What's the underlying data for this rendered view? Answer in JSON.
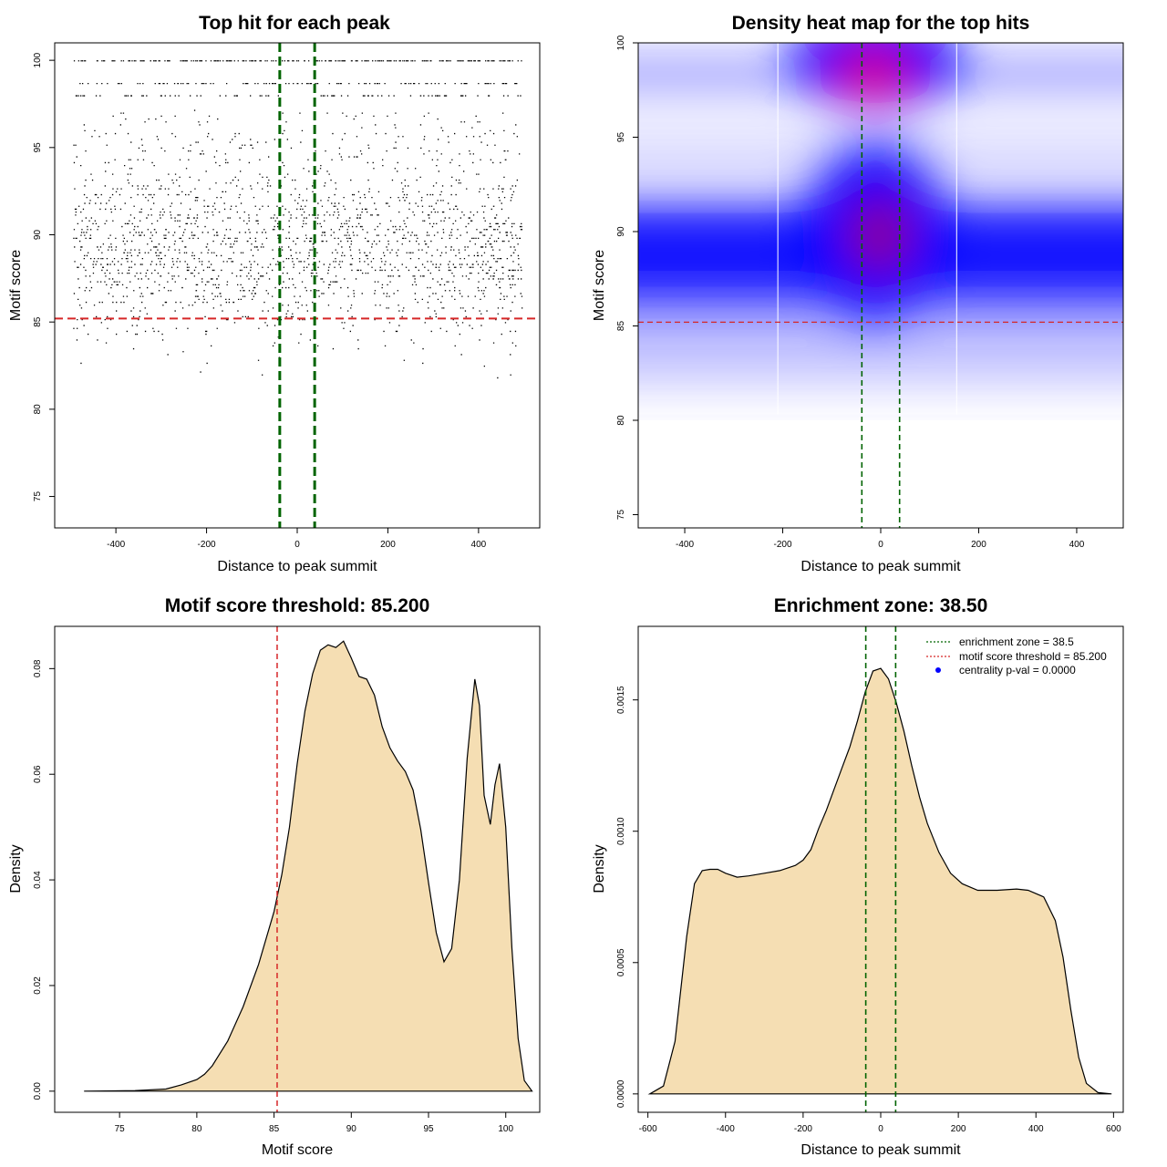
{
  "colors": {
    "points": "#000000",
    "threshold_line": "#d62728",
    "zone_line": "#006400",
    "density_fill": "#f5deb3",
    "density_line": "#000000",
    "heat_low": "#ffffff",
    "heat_mid": "#0000ff",
    "heat_high": "#ff0000",
    "legend_point": "#0000ff"
  },
  "chart_data": [
    {
      "type": "scatter",
      "title": "Top hit for each peak",
      "xlabel": "Distance to peak summit",
      "ylabel": "Motif score",
      "xlim": [
        -535,
        535
      ],
      "ylim": [
        73.2,
        101.0
      ],
      "xticks": [
        "-400",
        "-200",
        "0",
        "200",
        "400"
      ],
      "xtick_values": [
        -400,
        -200,
        0,
        200,
        400
      ],
      "yticks": [
        "75",
        "80",
        "85",
        "90",
        "95",
        "100"
      ],
      "ytick_values": [
        75,
        80,
        85,
        90,
        95,
        100
      ],
      "x_range": [
        -495,
        495
      ],
      "threshold_y": 85.2,
      "zone_x": [
        -38.5,
        38.5
      ],
      "dense_score_rows": [
        100.0,
        98.7,
        98.0
      ],
      "point_count_estimate": 9000
    },
    {
      "type": "heatmap",
      "title": "Density heat map for the top hits",
      "xlabel": "Distance to peak summit",
      "ylabel": "Motif score",
      "xlim": [
        -495,
        495
      ],
      "ylim": [
        74.3,
        100.0
      ],
      "xticks": [
        "-400",
        "-200",
        "0",
        "200",
        "400"
      ],
      "xtick_values": [
        -400,
        -200,
        0,
        200,
        400
      ],
      "yticks": [
        "75",
        "80",
        "85",
        "90",
        "95",
        "100"
      ],
      "ytick_values": [
        75,
        80,
        85,
        90,
        95,
        100
      ],
      "threshold_y": 85.2,
      "zone_x": [
        -38.5,
        38.5
      ],
      "vertical_white_lines_x": [
        -210,
        155
      ],
      "hotspots": [
        {
          "x": -15,
          "y": 98.5,
          "level": "high"
        },
        {
          "x": -10,
          "y": 90.0,
          "level": "high"
        }
      ]
    },
    {
      "type": "area",
      "title": "Motif score threshold: 85.200",
      "xlabel": "Motif score",
      "ylabel": "Density",
      "xlim": [
        70.8,
        102.2
      ],
      "ylim": [
        -0.004,
        0.088
      ],
      "xticks": [
        "75",
        "80",
        "85",
        "90",
        "95",
        "100"
      ],
      "xtick_values": [
        75,
        80,
        85,
        90,
        95,
        100
      ],
      "yticks": [
        "0.00",
        "0.02",
        "0.04",
        "0.06",
        "0.08"
      ],
      "ytick_values": [
        0.0,
        0.02,
        0.04,
        0.06,
        0.08
      ],
      "threshold_x": 85.2,
      "x": [
        72.7,
        76,
        78,
        79,
        80,
        80.5,
        81,
        82,
        83,
        84,
        85,
        85.5,
        86,
        86.5,
        87,
        87.5,
        88,
        88.5,
        89,
        89.5,
        90,
        90.5,
        91,
        91.5,
        92,
        92.5,
        93,
        93.5,
        94,
        94.5,
        95,
        95.5,
        96,
        96.5,
        97,
        97.5,
        98,
        98.3,
        98.6,
        99,
        99.3,
        99.6,
        100,
        100.4,
        100.8,
        101.2,
        101.7
      ],
      "y": [
        0.0,
        0.0001,
        0.0004,
        0.0012,
        0.0022,
        0.0032,
        0.0048,
        0.0095,
        0.016,
        0.024,
        0.034,
        0.041,
        0.05,
        0.062,
        0.072,
        0.079,
        0.0835,
        0.0845,
        0.084,
        0.0852,
        0.082,
        0.0785,
        0.078,
        0.075,
        0.069,
        0.065,
        0.0625,
        0.0605,
        0.057,
        0.0495,
        0.0395,
        0.03,
        0.0245,
        0.027,
        0.04,
        0.063,
        0.078,
        0.073,
        0.056,
        0.0505,
        0.058,
        0.062,
        0.05,
        0.027,
        0.01,
        0.002,
        0.0
      ]
    },
    {
      "type": "area",
      "title": "Enrichment zone: 38.50",
      "xlabel": "Distance to peak summit",
      "ylabel": "Density",
      "xlim": [
        -625,
        625
      ],
      "ylim": [
        -7e-05,
        0.00178
      ],
      "xticks": [
        "-600",
        "-400",
        "-200",
        "0",
        "200",
        "400",
        "600"
      ],
      "xtick_values": [
        -600,
        -400,
        -200,
        0,
        200,
        400,
        600
      ],
      "yticks": [
        "0.0000",
        "0.0005",
        "0.0010",
        "0.0015"
      ],
      "ytick_values": [
        0.0,
        0.0005,
        0.001,
        0.0015
      ],
      "zone_x": [
        -38.5,
        38.5
      ],
      "x": [
        -595,
        -560,
        -530,
        -500,
        -480,
        -460,
        -440,
        -420,
        -400,
        -370,
        -340,
        -300,
        -260,
        -220,
        -200,
        -180,
        -160,
        -140,
        -120,
        -100,
        -80,
        -60,
        -40,
        -20,
        0,
        20,
        40,
        60,
        80,
        100,
        120,
        150,
        180,
        210,
        250,
        300,
        350,
        380,
        420,
        450,
        470,
        490,
        510,
        530,
        560,
        595
      ],
      "y": [
        0.0,
        3e-05,
        0.0002,
        0.0006,
        0.0008,
        0.00085,
        0.000855,
        0.000855,
        0.00084,
        0.000825,
        0.00083,
        0.00084,
        0.00085,
        0.00087,
        0.00089,
        0.00093,
        0.00101,
        0.00108,
        0.00116,
        0.00124,
        0.00132,
        0.00142,
        0.00153,
        0.00161,
        0.00162,
        0.00158,
        0.00149,
        0.00138,
        0.00125,
        0.00113,
        0.00103,
        0.00092,
        0.00084,
        0.0008,
        0.000775,
        0.000775,
        0.00078,
        0.000775,
        0.00075,
        0.00066,
        0.00052,
        0.00032,
        0.00014,
        4e-05,
        5e-06,
        0.0
      ],
      "legend": [
        {
          "label": "enrichment zone = 38.5",
          "symbol": "dotted-line",
          "color": "#006400"
        },
        {
          "label": "motif score threshold = 85.200",
          "symbol": "dotted-line",
          "color": "#d62728"
        },
        {
          "label": "centrality p-val = 0.0000",
          "symbol": "dot",
          "color": "#0000ff"
        }
      ],
      "legend_position": "top-right"
    }
  ]
}
